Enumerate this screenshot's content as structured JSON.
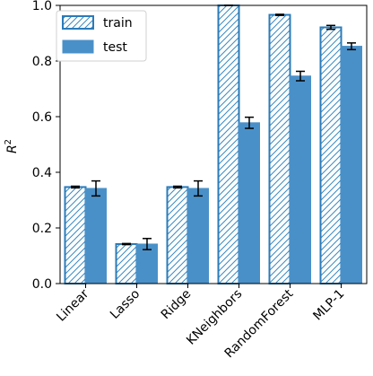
{
  "chart_data": {
    "type": "bar",
    "categories": [
      "Linear",
      "Lasso",
      "Ridge",
      "KNeighbors",
      "RandomForest",
      "MLP-1"
    ],
    "series": [
      {
        "name": "train",
        "style": "hatched",
        "values": [
          0.347,
          0.142,
          0.347,
          1.0,
          0.966,
          0.921
        ],
        "errors": [
          0.003,
          0.002,
          0.003,
          0.0,
          0.002,
          0.007
        ]
      },
      {
        "name": "test",
        "style": "solid",
        "values": [
          0.342,
          0.142,
          0.342,
          0.578,
          0.746,
          0.853
        ],
        "errors": [
          0.027,
          0.02,
          0.027,
          0.02,
          0.017,
          0.012
        ]
      }
    ],
    "ylabel_base": "R",
    "ylabel_sup": "2",
    "ylim": [
      0,
      1.0
    ],
    "yticks": [
      "0.0",
      "0.2",
      "0.4",
      "0.6",
      "0.8",
      "1.0"
    ],
    "grid": false,
    "legend_position": "top-left",
    "colors": {
      "bar": "#3a8bc2",
      "bar_fill": "#4a90c8",
      "edge": "#2b7bb9"
    }
  }
}
